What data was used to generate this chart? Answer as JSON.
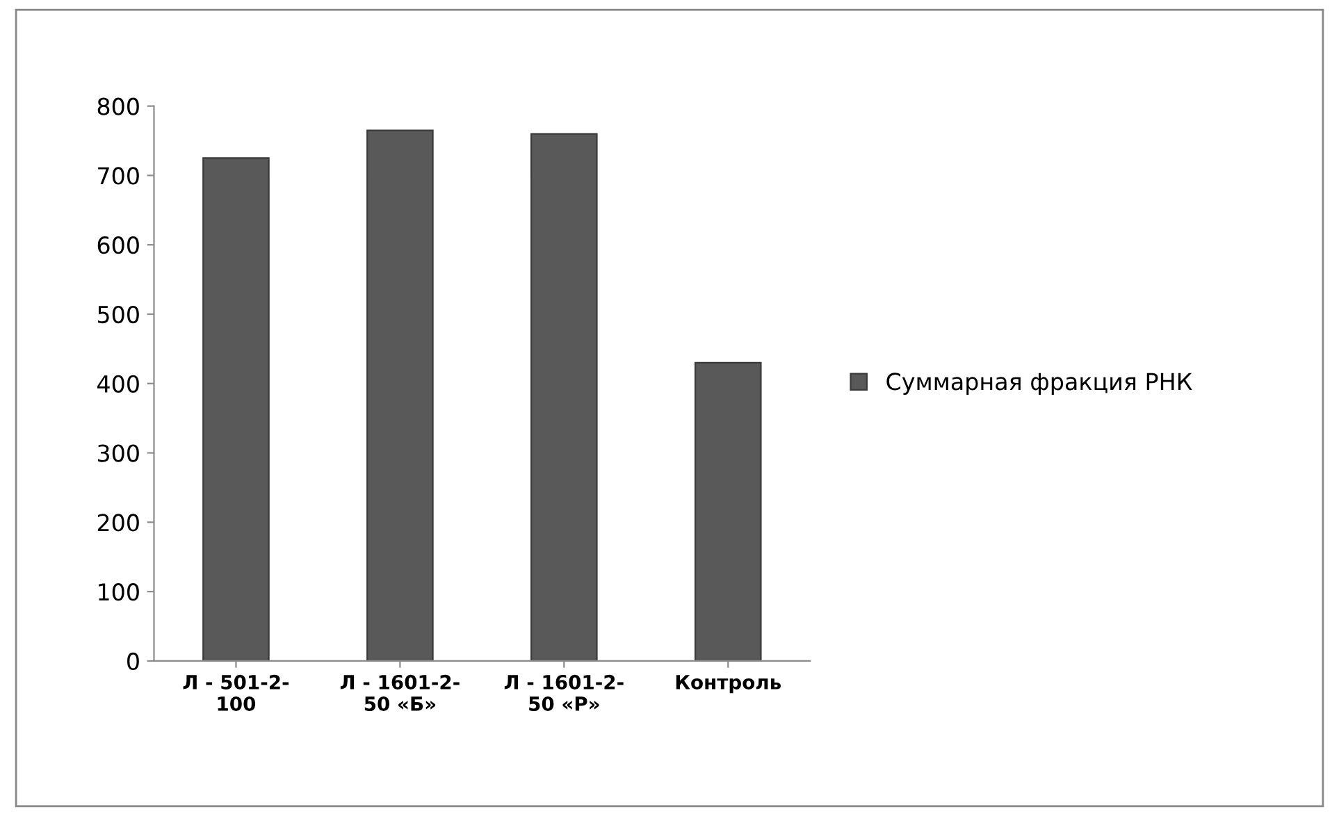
{
  "chart_data": {
    "type": "bar",
    "categories": [
      "Л - 501-2-\n100",
      "Л - 1601-2-\n50 «Б»",
      "Л - 1601-2-\n50 «Р»",
      "Контроль"
    ],
    "series": [
      {
        "name": "Суммарная фракция РНК",
        "color": "#595959",
        "values": [
          725,
          765,
          760,
          430
        ]
      }
    ],
    "ylim": [
      0,
      800
    ],
    "yticks": [
      0,
      100,
      200,
      300,
      400,
      500,
      600,
      700,
      800
    ],
    "grid": false,
    "legend": "right"
  }
}
